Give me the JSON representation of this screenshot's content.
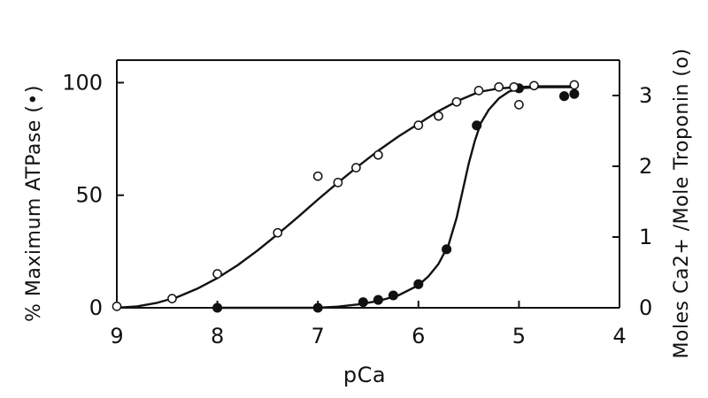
{
  "chart_data": {
    "type": "scatter",
    "title": "",
    "xlabel": "pCa",
    "ylabel_left": "% Maximum ATPase (•)",
    "ylabel_right": "Moles Ca2+ /Mole Troponin (o)",
    "xlim": [
      9,
      4
    ],
    "ylim_left": [
      0,
      110
    ],
    "ylim_right": [
      0,
      3.5
    ],
    "x_ticks": [
      9,
      8,
      7,
      6,
      5,
      4
    ],
    "x_tick_labels": [
      "9",
      "8",
      "7",
      "6",
      "5",
      "4"
    ],
    "y_ticks_left": [
      0,
      50,
      100
    ],
    "y_tick_labels_left": [
      "0",
      "50",
      "100"
    ],
    "y_ticks_right": [
      0,
      1,
      2,
      3
    ],
    "y_tick_labels_right": [
      "0",
      "1",
      "2",
      "3"
    ],
    "grid": false,
    "series": [
      {
        "marker": "filled-circle",
        "axis": "left",
        "x": [
          8.0,
          7.0,
          6.55,
          6.4,
          6.25,
          6.0,
          5.72,
          5.42,
          5.0,
          4.55,
          4.45
        ],
        "y": [
          0,
          0,
          2.5,
          3.5,
          5.5,
          10.5,
          26.0,
          81.0,
          97.5,
          94.0,
          95.0
        ]
      },
      {
        "marker": "open-circle",
        "axis": "right",
        "x": [
          9.0,
          8.45,
          8.0,
          7.4,
          7.0,
          6.8,
          6.62,
          6.4,
          6.0,
          5.8,
          5.62,
          5.4,
          5.2,
          5.05,
          5.0,
          4.85,
          4.45
        ],
        "y": [
          0.02,
          0.13,
          0.48,
          1.06,
          1.86,
          1.77,
          1.98,
          2.16,
          2.58,
          2.71,
          2.91,
          3.07,
          3.12,
          3.12,
          2.87,
          3.14,
          3.15
        ]
      }
    ],
    "fitted_curves": [
      {
        "axis": "left",
        "x": [
          8.0,
          7.5,
          7.0,
          6.8,
          6.6,
          6.4,
          6.2,
          6.0,
          5.9,
          5.8,
          5.7,
          5.62,
          5.56,
          5.5,
          5.44,
          5.38,
          5.3,
          5.2,
          5.1,
          5.0,
          4.8,
          4.6,
          4.45
        ],
        "y": [
          0,
          0,
          0,
          0.5,
          1.5,
          3.0,
          5.5,
          10.0,
          14.0,
          19.5,
          28.0,
          40.0,
          52.0,
          64.0,
          74.0,
          82.0,
          88.0,
          93.0,
          96.0,
          97.5,
          98.0,
          98.0,
          98.0
        ]
      },
      {
        "axis": "right",
        "x": [
          9.0,
          8.8,
          8.6,
          8.4,
          8.2,
          8.0,
          7.8,
          7.6,
          7.4,
          7.2,
          7.0,
          6.8,
          6.6,
          6.4,
          6.2,
          6.0,
          5.8,
          5.6,
          5.4,
          5.2,
          5.0,
          4.8,
          4.6,
          4.45
        ],
        "y": [
          0.0,
          0.02,
          0.07,
          0.15,
          0.27,
          0.42,
          0.6,
          0.81,
          1.04,
          1.28,
          1.53,
          1.77,
          2.0,
          2.22,
          2.42,
          2.6,
          2.78,
          2.93,
          3.05,
          3.1,
          3.12,
          3.13,
          3.13,
          3.13
        ]
      }
    ]
  }
}
